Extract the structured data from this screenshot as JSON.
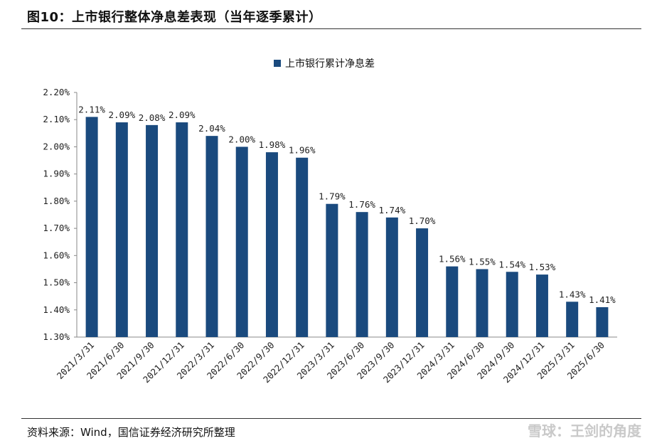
{
  "figure": {
    "title": "图10：上市银行整体净息差表现（当年逐季累计）",
    "source": "资料来源：Wind，国信证券经济研究所整理",
    "watermark": "雪球：王剑的角度"
  },
  "chart_data": {
    "type": "bar",
    "categories": [
      "2021/3/31",
      "2021/6/30",
      "2021/9/30",
      "2021/12/31",
      "2022/3/31",
      "2022/6/30",
      "2022/9/30",
      "2022/12/31",
      "2023/3/31",
      "2023/6/30",
      "2023/9/30",
      "2023/12/31",
      "2024/3/31",
      "2024/6/30",
      "2024/9/30",
      "2024/12/31",
      "2025/3/31",
      "2025/6/30"
    ],
    "series": [
      {
        "name": "上市银行累计净息差",
        "values": [
          2.11,
          2.09,
          2.08,
          2.09,
          2.04,
          2.0,
          1.98,
          1.96,
          1.79,
          1.76,
          1.74,
          1.7,
          1.56,
          1.55,
          1.54,
          1.53,
          1.43,
          1.41
        ],
        "labels": [
          "2.11%",
          "2.09%",
          "2.08%",
          "2.09%",
          "2.04%",
          "2.00%",
          "1.98%",
          "1.96%",
          "1.79%",
          "1.76%",
          "1.74%",
          "1.70%",
          "1.56%",
          "1.55%",
          "1.54%",
          "1.53%",
          "1.43%",
          "1.41%"
        ]
      }
    ],
    "ylim": [
      1.3,
      2.2
    ],
    "yticks": [
      "1.30%",
      "1.40%",
      "1.50%",
      "1.60%",
      "1.70%",
      "1.80%",
      "1.90%",
      "2.00%",
      "2.10%",
      "2.20%"
    ],
    "ytick_values": [
      1.3,
      1.4,
      1.5,
      1.6,
      1.7,
      1.8,
      1.9,
      2.0,
      2.1,
      2.2
    ],
    "legend_position": "top-center",
    "grid": false,
    "color": "#1a4a7e"
  }
}
